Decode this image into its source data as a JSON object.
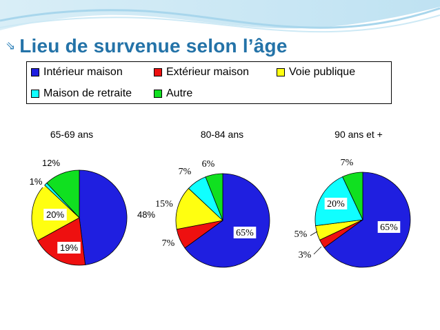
{
  "slide": {
    "title_bullet": "⇘",
    "title": "Lieu de survenue selon l’âge"
  },
  "legend": {
    "items": [
      {
        "label": "Intérieur maison",
        "color": "#1f1fe0"
      },
      {
        "label": "Extérieur maison",
        "color": "#ee1010"
      },
      {
        "label": "Voie publique",
        "color": "#ffff10"
      },
      {
        "label": "Maison de retraite",
        "color": "#10ffff"
      },
      {
        "label": "Autre",
        "color": "#10e020"
      }
    ]
  },
  "chart_data": [
    {
      "type": "pie",
      "title": "65-69 ans",
      "categories": [
        "Intérieur maison",
        "Extérieur maison",
        "Voie publique",
        "Maison de retraite",
        "Autre"
      ],
      "values": [
        48,
        19,
        20,
        1,
        12
      ],
      "labels": [
        "48%",
        "19%",
        "20%",
        "1%",
        "12%"
      ]
    },
    {
      "type": "pie",
      "title": "80-84 ans",
      "categories": [
        "Intérieur maison",
        "Extérieur maison",
        "Voie publique",
        "Maison de retraite",
        "Autre"
      ],
      "values": [
        65,
        7,
        15,
        7,
        6
      ],
      "labels": [
        "65%",
        "7%",
        "15%",
        "7%",
        "6%"
      ]
    },
    {
      "type": "pie",
      "title": "90 ans et +",
      "categories": [
        "Intérieur maison",
        "Extérieur maison",
        "Voie publique",
        "Maison de retraite",
        "Autre"
      ],
      "values": [
        65,
        3,
        5,
        20,
        7
      ],
      "labels": [
        "65%",
        "3%",
        "5%",
        "20%",
        "7%"
      ]
    }
  ]
}
